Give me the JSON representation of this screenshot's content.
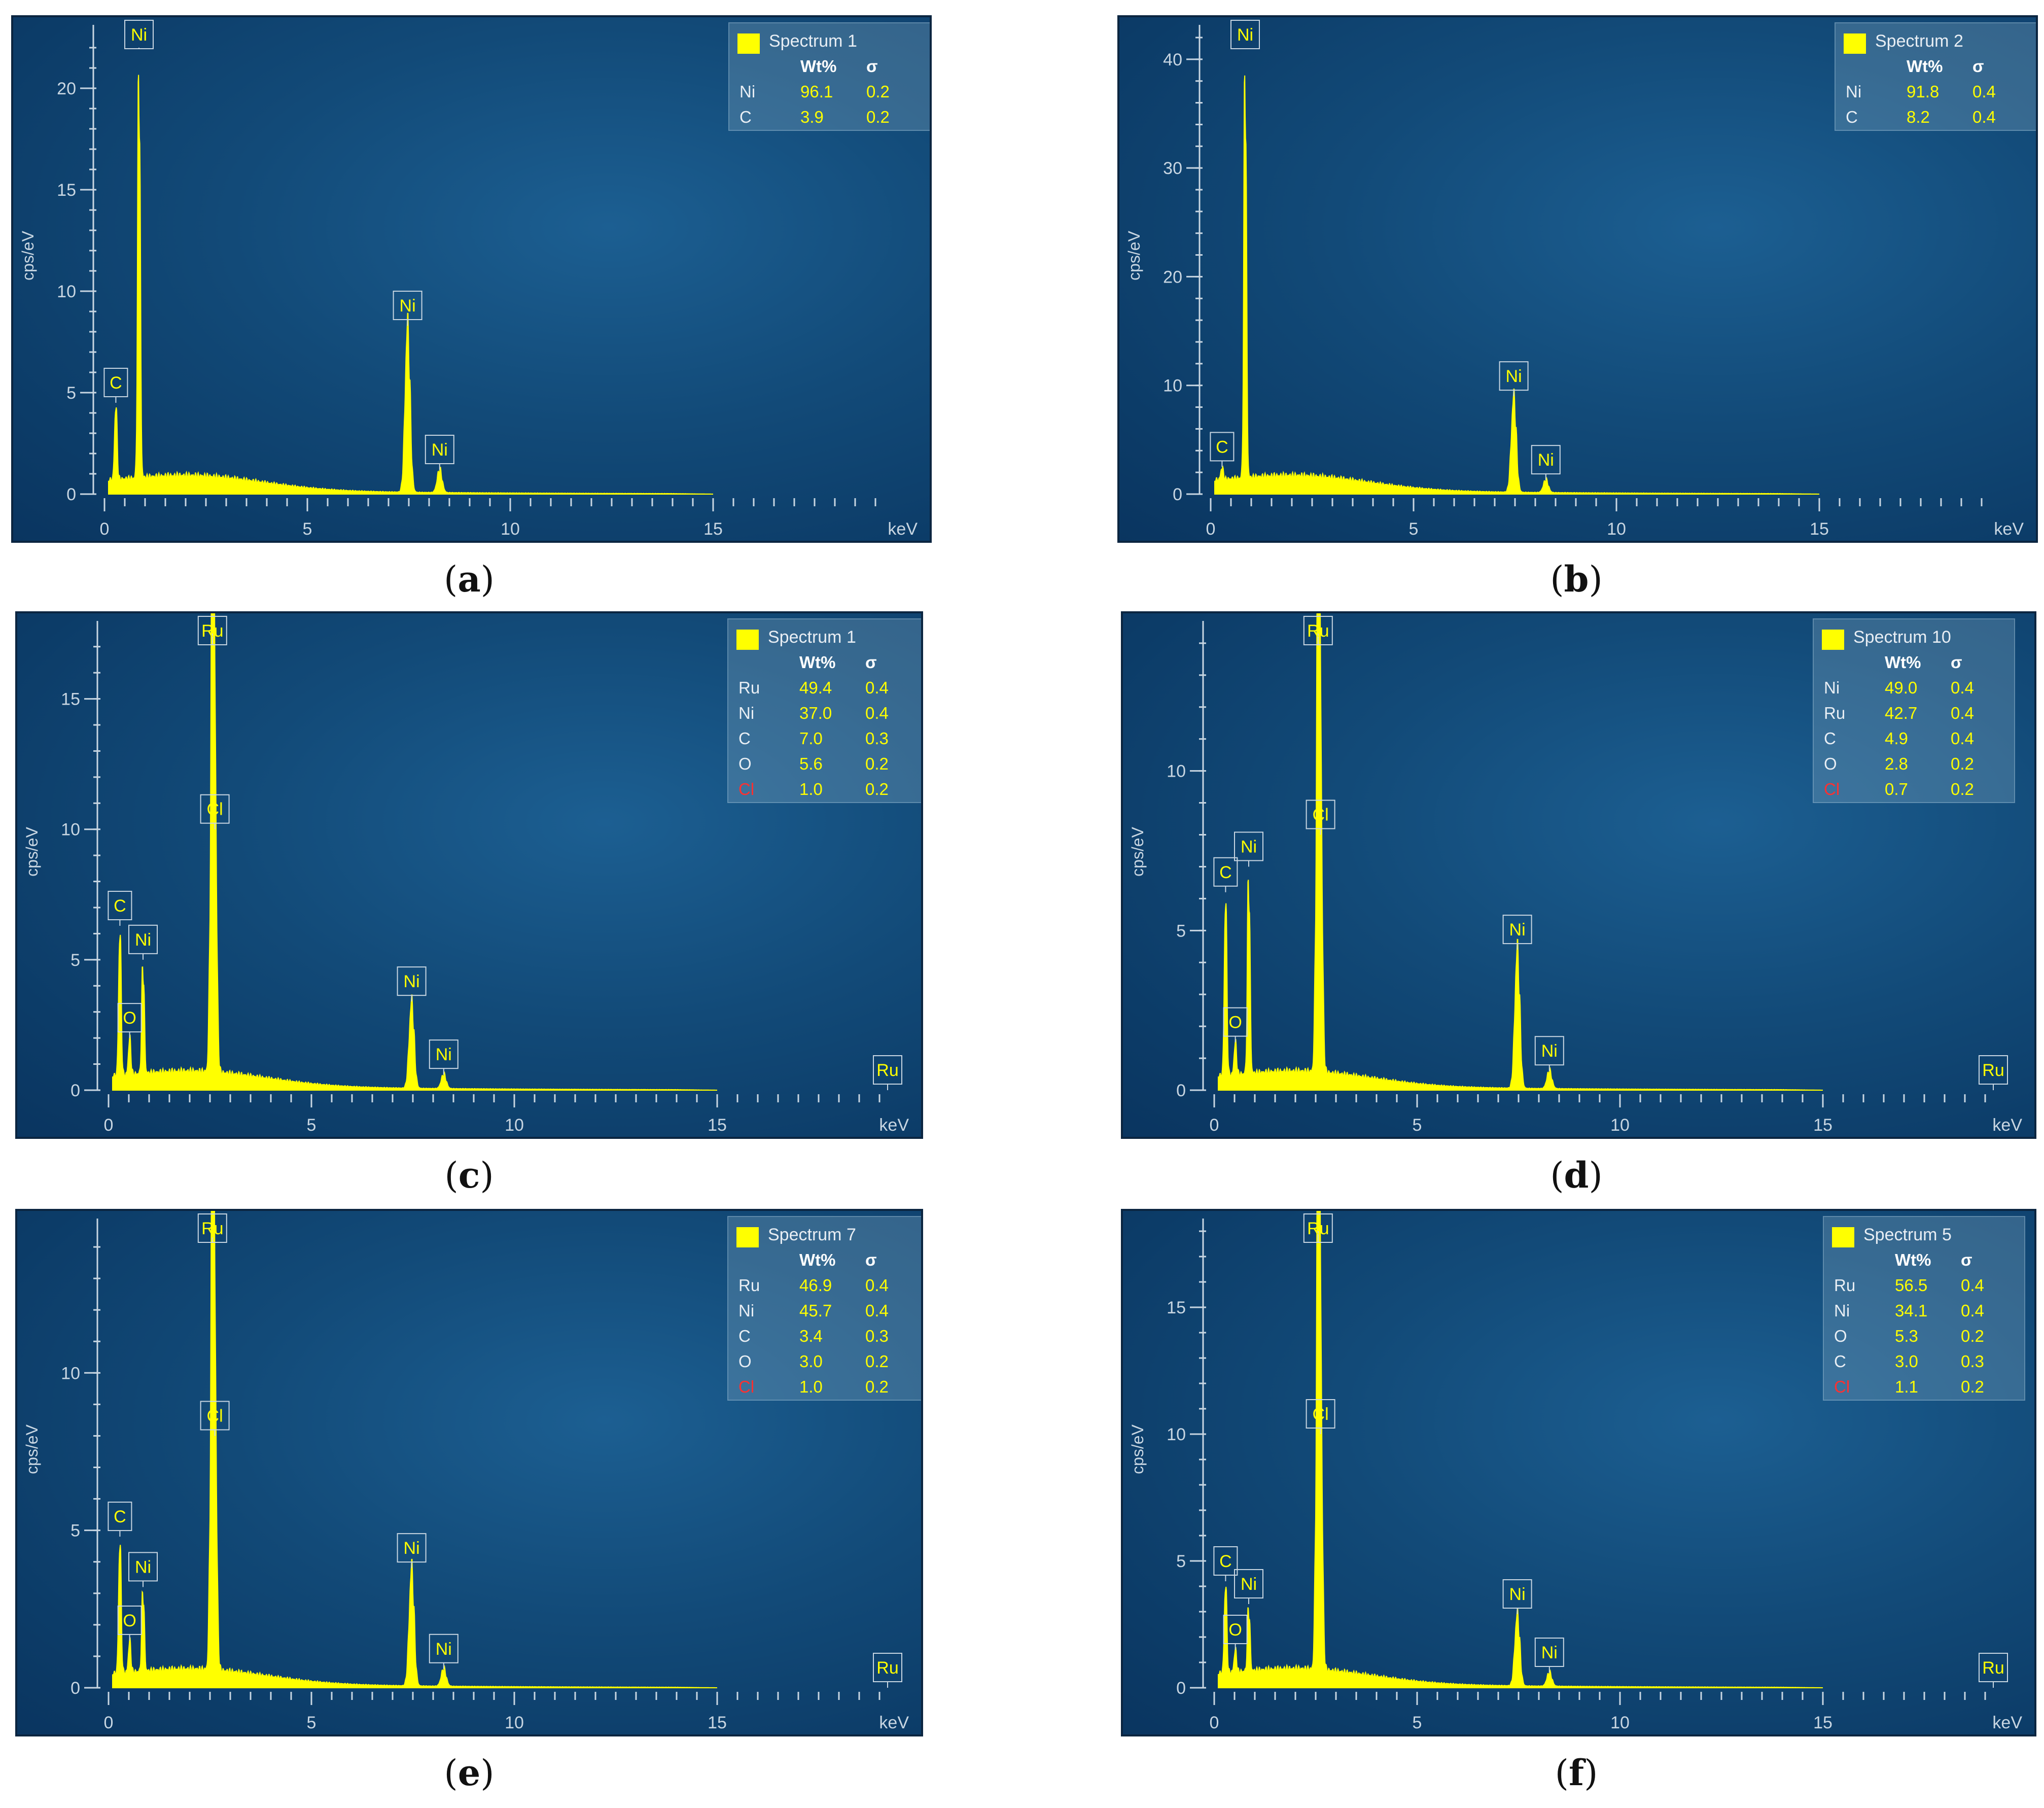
{
  "colors": {
    "spectrum": "#ffff00",
    "axis": "#c8d6e2",
    "red_label": "#ff3030"
  },
  "chart_data": [
    {
      "type": "area",
      "panel_label": "a",
      "legend_title": "Spectrum 1",
      "table_headers": [
        "Wt%",
        "σ"
      ],
      "composition": [
        {
          "element": "Ni",
          "wt": "96.1",
          "sigma": "0.2"
        },
        {
          "element": "C",
          "wt": "3.9",
          "sigma": "0.2"
        }
      ],
      "ylabel": "cps/eV",
      "xunit": "keV",
      "xlim": [
        0,
        20
      ],
      "ylim": [
        0,
        22.5
      ],
      "xticks": [
        0,
        5,
        10,
        15
      ],
      "yticks": [
        0,
        5,
        10,
        15,
        20
      ],
      "peaks": [
        {
          "x": 0.28,
          "y": 4.5,
          "label": "C"
        },
        {
          "x": 0.85,
          "y": 22.0,
          "label": "Ni"
        },
        {
          "x": 7.47,
          "y": 8.3,
          "label": "Ni"
        },
        {
          "x": 8.26,
          "y": 1.2,
          "label": "Ni"
        }
      ]
    },
    {
      "type": "area",
      "panel_label": "b",
      "legend_title": "Spectrum 2",
      "table_headers": [
        "Wt%",
        "σ"
      ],
      "composition": [
        {
          "element": "Ni",
          "wt": "91.8",
          "sigma": "0.4"
        },
        {
          "element": "C",
          "wt": "8.2",
          "sigma": "0.4"
        }
      ],
      "ylabel": "cps/eV",
      "xunit": "keV",
      "xlim": [
        0,
        20
      ],
      "ylim": [
        0,
        42
      ],
      "xticks": [
        0,
        5,
        10,
        15
      ],
      "yticks": [
        0,
        10,
        20,
        30,
        40
      ],
      "peaks": [
        {
          "x": 0.28,
          "y": 2.5,
          "label": "C"
        },
        {
          "x": 0.85,
          "y": 41.0,
          "label": "Ni"
        },
        {
          "x": 7.47,
          "y": 9.0,
          "label": "Ni"
        },
        {
          "x": 8.26,
          "y": 1.3,
          "label": "Ni"
        }
      ]
    },
    {
      "type": "area",
      "panel_label": "c",
      "legend_title": "Spectrum 1",
      "table_headers": [
        "Wt%",
        "σ"
      ],
      "composition": [
        {
          "element": "Ru",
          "wt": "49.4",
          "sigma": "0.4"
        },
        {
          "element": "Ni",
          "wt": "37.0",
          "sigma": "0.4"
        },
        {
          "element": "C",
          "wt": "7.0",
          "sigma": "0.3"
        },
        {
          "element": "O",
          "wt": "5.6",
          "sigma": "0.2"
        },
        {
          "element": "Cl",
          "wt": "1.0",
          "sigma": "0.2"
        }
      ],
      "ylabel": "cps/eV",
      "xunit": "keV",
      "xlim": [
        0,
        20
      ],
      "ylim": [
        0,
        17.5
      ],
      "xticks": [
        0,
        5,
        10,
        15
      ],
      "yticks": [
        0,
        5,
        10,
        15
      ],
      "peaks": [
        {
          "x": 0.28,
          "y": 6.3,
          "label": "C"
        },
        {
          "x": 0.52,
          "y": 2.0,
          "label": "O"
        },
        {
          "x": 0.85,
          "y": 5.0,
          "label": "Ni"
        },
        {
          "x": 2.56,
          "y": 17.5,
          "label": "Ru"
        },
        {
          "x": 2.62,
          "y": 10.0,
          "label": "Cl"
        },
        {
          "x": 7.47,
          "y": 3.4,
          "label": "Ni"
        },
        {
          "x": 8.26,
          "y": 0.6,
          "label": "Ni"
        },
        {
          "x": 19.2,
          "y": 0,
          "label": "Ru"
        }
      ]
    },
    {
      "type": "area",
      "panel_label": "d",
      "legend_title": "Spectrum 10",
      "table_headers": [
        "Wt%",
        "σ"
      ],
      "composition": [
        {
          "element": "Ni",
          "wt": "49.0",
          "sigma": "0.4"
        },
        {
          "element": "Ru",
          "wt": "42.7",
          "sigma": "0.4"
        },
        {
          "element": "C",
          "wt": "4.9",
          "sigma": "0.4"
        },
        {
          "element": "O",
          "wt": "2.8",
          "sigma": "0.2"
        },
        {
          "element": "Cl",
          "wt": "0.7",
          "sigma": "0.2"
        }
      ],
      "ylabel": "cps/eV",
      "xunit": "keV",
      "xlim": [
        0,
        20
      ],
      "ylim": [
        0,
        14.3
      ],
      "xticks": [
        0,
        5,
        10,
        15
      ],
      "yticks": [
        0,
        5,
        10
      ],
      "peaks": [
        {
          "x": 0.28,
          "y": 6.2,
          "label": "C"
        },
        {
          "x": 0.52,
          "y": 1.5,
          "label": "O"
        },
        {
          "x": 0.85,
          "y": 7.0,
          "label": "Ni"
        },
        {
          "x": 2.56,
          "y": 14.3,
          "label": "Ru"
        },
        {
          "x": 2.62,
          "y": 8.0,
          "label": "Cl"
        },
        {
          "x": 7.47,
          "y": 4.4,
          "label": "Ni"
        },
        {
          "x": 8.26,
          "y": 0.6,
          "label": "Ni"
        },
        {
          "x": 19.2,
          "y": 0,
          "label": "Ru"
        }
      ]
    },
    {
      "type": "area",
      "panel_label": "e",
      "legend_title": "Spectrum 7",
      "table_headers": [
        "Wt%",
        "σ"
      ],
      "composition": [
        {
          "element": "Ru",
          "wt": "46.9",
          "sigma": "0.4"
        },
        {
          "element": "Ni",
          "wt": "45.7",
          "sigma": "0.4"
        },
        {
          "element": "C",
          "wt": "3.4",
          "sigma": "0.3"
        },
        {
          "element": "O",
          "wt": "3.0",
          "sigma": "0.2"
        },
        {
          "element": "Cl",
          "wt": "1.0",
          "sigma": "0.2"
        }
      ],
      "ylabel": "cps/eV",
      "xunit": "keV",
      "xlim": [
        0,
        20
      ],
      "ylim": [
        0,
        14.5
      ],
      "xticks": [
        0,
        5,
        10,
        15
      ],
      "yticks": [
        0,
        5,
        10
      ],
      "peaks": [
        {
          "x": 0.28,
          "y": 4.8,
          "label": "C"
        },
        {
          "x": 0.52,
          "y": 1.5,
          "label": "O"
        },
        {
          "x": 0.85,
          "y": 3.2,
          "label": "Ni"
        },
        {
          "x": 2.56,
          "y": 14.3,
          "label": "Ru"
        },
        {
          "x": 2.62,
          "y": 8.0,
          "label": "Cl"
        },
        {
          "x": 7.47,
          "y": 3.8,
          "label": "Ni"
        },
        {
          "x": 8.26,
          "y": 0.6,
          "label": "Ni"
        },
        {
          "x": 19.2,
          "y": 0,
          "label": "Ru"
        }
      ]
    },
    {
      "type": "area",
      "panel_label": "f",
      "legend_title": "Spectrum 5",
      "table_headers": [
        "Wt%",
        "σ"
      ],
      "composition": [
        {
          "element": "Ru",
          "wt": "56.5",
          "sigma": "0.4"
        },
        {
          "element": "Ni",
          "wt": "34.1",
          "sigma": "0.4"
        },
        {
          "element": "O",
          "wt": "5.3",
          "sigma": "0.2"
        },
        {
          "element": "C",
          "wt": "3.0",
          "sigma": "0.3"
        },
        {
          "element": "Cl",
          "wt": "1.1",
          "sigma": "0.2"
        }
      ],
      "ylabel": "cps/eV",
      "xunit": "keV",
      "xlim": [
        0,
        20
      ],
      "ylim": [
        0,
        18
      ],
      "xticks": [
        0,
        5,
        10,
        15
      ],
      "yticks": [
        0,
        5,
        10,
        15
      ],
      "peaks": [
        {
          "x": 0.28,
          "y": 4.2,
          "label": "C"
        },
        {
          "x": 0.52,
          "y": 1.5,
          "label": "O"
        },
        {
          "x": 0.85,
          "y": 3.3,
          "label": "Ni"
        },
        {
          "x": 2.56,
          "y": 18.0,
          "label": "Ru"
        },
        {
          "x": 2.62,
          "y": 10.0,
          "label": "Cl"
        },
        {
          "x": 7.47,
          "y": 2.9,
          "label": "Ni"
        },
        {
          "x": 8.26,
          "y": 0.6,
          "label": "Ni"
        },
        {
          "x": 19.2,
          "y": 0,
          "label": "Ru"
        }
      ]
    }
  ]
}
